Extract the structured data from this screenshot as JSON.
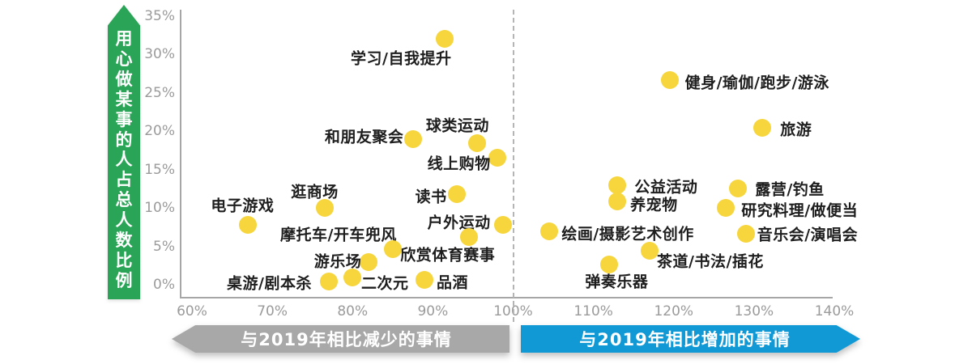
{
  "colors": {
    "green_arrow": "#2aa457",
    "dot_yellow": "#f6d63c",
    "banner_gray": "#a8a8a8",
    "banner_blue": "#1199d6",
    "axis_text": "#9b9b9b",
    "label_text": "#1e1e1e",
    "axis_line": "#a6a6a6",
    "dashed_line": "#b5b5b5"
  },
  "y_axis_title": "用心做某事的人占总人数比例",
  "banners": {
    "decrease": "与2019年相比减少的事情",
    "increase": "与2019年相比增加的事情"
  },
  "chart_data": {
    "type": "scatter",
    "title": "",
    "xlabel": "",
    "ylabel": "用心做某事的人占总人数比例",
    "xlim": [
      60,
      140
    ],
    "ylim": [
      0,
      35
    ],
    "x_ticks": [
      "60%",
      "70%",
      "80%",
      "90%",
      "100%",
      "110%",
      "120%",
      "130%",
      "140%"
    ],
    "y_ticks": [
      "0%",
      "5%",
      "10%",
      "15%",
      "20%",
      "25%",
      "30%",
      "35%"
    ],
    "grid": false,
    "divider_x": 100,
    "legend": "none",
    "series_note": "x = ratio vs 2019 (%), y = share of people doing it attentively (%)",
    "points": [
      {
        "label": "学习/自我提升",
        "x": 91.5,
        "y": 32,
        "label_offset": [
          -54,
          23
        ]
      },
      {
        "label": "和朋友聚会",
        "x": 87.5,
        "y": 19,
        "label_offset": [
          -60,
          -4
        ]
      },
      {
        "label": "球类运动",
        "x": 95.5,
        "y": 18.5,
        "label_offset": [
          -24,
          -23
        ]
      },
      {
        "label": "线上购物",
        "x": 98,
        "y": 16.5,
        "label_offset": [
          -47,
          6
        ]
      },
      {
        "label": "读书",
        "x": 93,
        "y": 11.8,
        "label_offset": [
          -32,
          2
        ]
      },
      {
        "label": "逛商场",
        "x": 76.5,
        "y": 10,
        "label_offset": [
          -12,
          -21
        ]
      },
      {
        "label": "电子游戏",
        "x": 67,
        "y": 7.8,
        "label_offset": [
          -7,
          -25
        ]
      },
      {
        "label": "户外运动",
        "x": 98.7,
        "y": 7.8,
        "label_offset": [
          -54,
          -4
        ]
      },
      {
        "label": "摩托车/开车兜风",
        "x": 94.5,
        "y": 6.2,
        "label_offset": [
          -161,
          -4
        ]
      },
      {
        "label": "欣赏体育赛事",
        "x": 85,
        "y": 4.6,
        "label_offset": [
          68,
          6
        ]
      },
      {
        "label": "游乐场",
        "x": 82,
        "y": 3,
        "label_offset": [
          -38,
          -2
        ]
      },
      {
        "label": "桌游/剧本杀",
        "x": 77,
        "y": 0.4,
        "label_offset": [
          -73,
          1
        ]
      },
      {
        "label": "二次元",
        "x": 80,
        "y": 1,
        "label_offset": [
          40,
          6
        ]
      },
      {
        "label": "品酒",
        "x": 89,
        "y": 0.6,
        "label_offset": [
          34,
          2
        ]
      },
      {
        "label": "健身/瑜伽/跑步/游泳",
        "x": 119.5,
        "y": 26.7,
        "label_offset": [
          108,
          2
        ]
      },
      {
        "label": "旅游",
        "x": 131,
        "y": 20.5,
        "label_offset": [
          42,
          1
        ]
      },
      {
        "label": "公益活动",
        "x": 113,
        "y": 13,
        "label_offset": [
          60,
          1
        ]
      },
      {
        "label": "养宠物",
        "x": 113,
        "y": 10.9,
        "label_offset": [
          45,
          3
        ]
      },
      {
        "label": "露营/钓鱼",
        "x": 128,
        "y": 12.5,
        "label_offset": [
          64,
          0
        ]
      },
      {
        "label": "研究料理/做便当",
        "x": 126.5,
        "y": 10,
        "label_offset": [
          91,
          2
        ]
      },
      {
        "label": "音乐会/演唱会",
        "x": 129,
        "y": 6.6,
        "label_offset": [
          76,
          0
        ]
      },
      {
        "label": "绘画/摄影艺术创作",
        "x": 104.5,
        "y": 7,
        "label_offset": [
          97,
          2
        ]
      },
      {
        "label": "茶道/书法/插花",
        "x": 117,
        "y": 4.4,
        "label_offset": [
          75,
          12
        ]
      },
      {
        "label": "弹奏乐器",
        "x": 112,
        "y": 2.6,
        "label_offset": [
          9,
          20
        ]
      }
    ]
  }
}
